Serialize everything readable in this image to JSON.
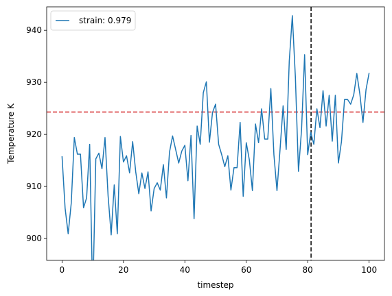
{
  "chart_data": {
    "type": "line",
    "xlabel": "timestep",
    "ylabel": "Temperature K",
    "xlim": [
      -5,
      105
    ],
    "ylim": [
      895.8,
      944.5
    ],
    "xticks": [
      0,
      20,
      40,
      60,
      80,
      100
    ],
    "yticks": [
      900,
      910,
      920,
      930,
      940
    ],
    "grid": false,
    "legend_position": "top-left",
    "series": [
      {
        "name": "strain: 0.979",
        "color": "#1f77b4",
        "x": [
          0,
          1,
          2,
          3,
          4,
          5,
          6,
          7,
          8,
          9,
          10,
          11,
          12,
          13,
          14,
          15,
          16,
          17,
          18,
          19,
          20,
          21,
          22,
          23,
          24,
          25,
          26,
          27,
          28,
          29,
          30,
          31,
          32,
          33,
          34,
          35,
          36,
          37,
          38,
          39,
          40,
          41,
          42,
          43,
          44,
          45,
          46,
          47,
          48,
          49,
          50,
          51,
          52,
          53,
          54,
          55,
          56,
          57,
          58,
          59,
          60,
          61,
          62,
          63,
          64,
          65,
          66,
          67,
          68,
          69,
          70,
          71,
          72,
          73,
          74,
          75,
          76,
          77,
          78,
          79,
          80,
          81,
          82,
          83,
          84,
          85,
          86,
          87,
          88,
          89,
          90,
          91,
          92,
          93,
          94,
          95,
          96,
          97,
          98,
          99,
          100
        ],
        "y": [
          915.8,
          905.8,
          900.9,
          906.8,
          919.4,
          916.2,
          916.2,
          905.9,
          907.8,
          918.1,
          888.2,
          915.3,
          916.4,
          913.4,
          919.4,
          908.2,
          900.7,
          910.3,
          900.9,
          919.6,
          914.7,
          915.9,
          912.6,
          918.6,
          912.8,
          908.6,
          912.6,
          909.6,
          912.8,
          905.3,
          909.6,
          910.7,
          909.3,
          914.2,
          907.8,
          916.6,
          919.7,
          917.1,
          914.5,
          916.8,
          917.9,
          911.1,
          919.8,
          903.8,
          921.6,
          918.1,
          928.0,
          930.1,
          918.5,
          924.2,
          925.8,
          918.1,
          916.1,
          913.8,
          915.9,
          909.3,
          913.6,
          913.6,
          922.3,
          908.1,
          918.4,
          915.1,
          909.2,
          922.0,
          918.4,
          924.9,
          919.1,
          919.1,
          928.8,
          916.1,
          909.2,
          917.1,
          925.5,
          917.1,
          934.1,
          942.8,
          930.9,
          912.9,
          920.9,
          935.3,
          916.1,
          920.4,
          918.1,
          924.9,
          921.3,
          928.4,
          921.6,
          927.5,
          918.7,
          927.5,
          914.5,
          918.6,
          926.7,
          926.7,
          925.8,
          927.6,
          931.7,
          927.7,
          922.3,
          928.6,
          931.8
        ]
      }
    ],
    "reference_lines": [
      {
        "orientation": "horizontal",
        "value": 924.3,
        "color": "#d62728",
        "style": "dashed"
      },
      {
        "orientation": "vertical",
        "value": 81.1,
        "color": "#000000",
        "style": "dashed"
      }
    ]
  }
}
